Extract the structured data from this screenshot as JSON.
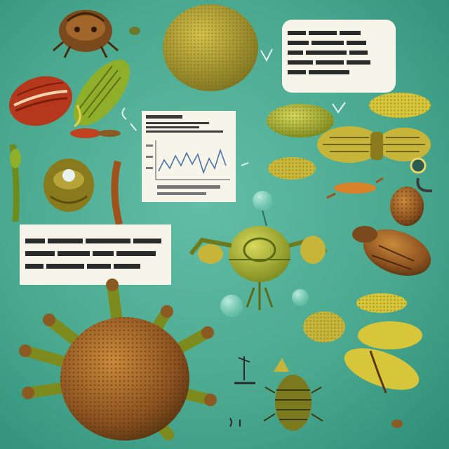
{
  "scene": {
    "background_colors": [
      "#5fb8a0",
      "#46a58c",
      "#2f8f78"
    ],
    "text_cards": 3,
    "palette": {
      "olive": "#b9a92a",
      "gold": "#d8c63a",
      "brown": "#8a5a22",
      "dark_brown": "#5a3612",
      "rust": "#c0421f",
      "green": "#8fae2a",
      "card": "#f7f4ea"
    }
  }
}
